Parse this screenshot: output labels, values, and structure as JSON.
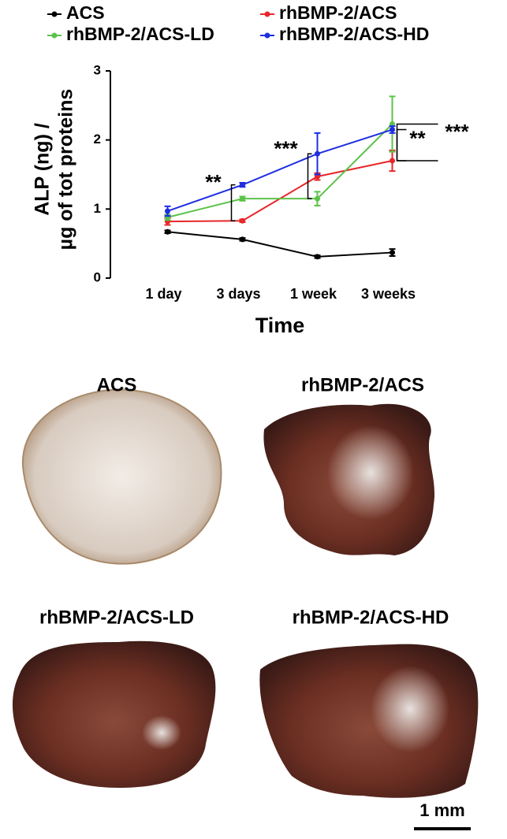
{
  "chart_data": {
    "type": "line",
    "categories": [
      "1 day",
      "3 days",
      "1 week",
      "3 weeks"
    ],
    "y_label": [
      "ALP (ng) /",
      "µg of tot proteins"
    ],
    "x_label": "Time",
    "ylim": [
      0,
      3
    ],
    "yticks": [
      0,
      1,
      2,
      3
    ],
    "series": [
      {
        "name": "ACS",
        "color": "#000000",
        "values": [
          0.67,
          0.56,
          0.31,
          0.37
        ],
        "errors": [
          0.02,
          0.02,
          0.02,
          0.05
        ]
      },
      {
        "name": "rhBMP-2/ACS",
        "color": "#e8262a",
        "values": [
          0.82,
          0.83,
          1.47,
          1.7
        ],
        "errors": [
          0.05,
          0.02,
          0.05,
          0.15
        ]
      },
      {
        "name": "rhBMP-2/ACS-LD",
        "color": "#5cc24a",
        "values": [
          0.88,
          1.15,
          1.15,
          2.23
        ],
        "errors": [
          0.04,
          0.03,
          0.1,
          0.4
        ]
      },
      {
        "name": "rhBMP-2/ACS-HD",
        "color": "#1f2ee0",
        "values": [
          0.97,
          1.35,
          1.8,
          2.15
        ],
        "errors": [
          0.07,
          0.03,
          0.3,
          0.05
        ]
      }
    ],
    "annotations": [
      "**",
      "***",
      "**",
      "***"
    ]
  },
  "panels": [
    "ACS",
    "rhBMP-2/ACS",
    "rhBMP-2/ACS-LD",
    "rhBMP-2/ACS-HD"
  ],
  "scale_bar": "1 mm"
}
